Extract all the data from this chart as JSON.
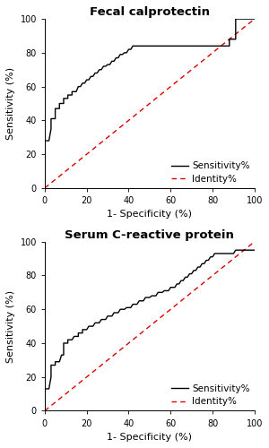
{
  "title1": "Fecal calprotectin",
  "title2": "Serum C-reactive protein",
  "xlabel": "1- Specificity (%)",
  "ylabel": "Sensitivity (%)",
  "xlim": [
    0,
    100
  ],
  "ylim": [
    0,
    100
  ],
  "xticks": [
    0,
    20,
    40,
    60,
    80,
    100
  ],
  "yticks": [
    0,
    20,
    40,
    60,
    80,
    100
  ],
  "legend_labels": [
    "Sensitivity%",
    "Identity%"
  ],
  "roc1_x": [
    0,
    0,
    2,
    3,
    3,
    5,
    5,
    7,
    7,
    9,
    9,
    11,
    11,
    13,
    13,
    15,
    16,
    17,
    18,
    19,
    20,
    21,
    22,
    23,
    24,
    25,
    26,
    27,
    28,
    29,
    30,
    31,
    32,
    33,
    34,
    35,
    36,
    37,
    38,
    39,
    40,
    41,
    42,
    43,
    44,
    45,
    46,
    47,
    48,
    49,
    50,
    88,
    88,
    91,
    91,
    94,
    100
  ],
  "roc1_y": [
    0,
    28,
    28,
    35,
    41,
    41,
    47,
    47,
    50,
    50,
    53,
    53,
    55,
    55,
    57,
    57,
    60,
    60,
    62,
    62,
    64,
    64,
    66,
    66,
    68,
    68,
    70,
    70,
    72,
    72,
    73,
    73,
    75,
    75,
    77,
    77,
    79,
    79,
    80,
    80,
    82,
    82,
    84,
    84,
    84,
    84,
    84,
    84,
    84,
    84,
    84,
    84,
    88,
    88,
    100,
    100,
    100
  ],
  "roc2_x": [
    0,
    0,
    2,
    3,
    3,
    5,
    5,
    7,
    8,
    9,
    9,
    11,
    11,
    13,
    14,
    16,
    16,
    18,
    18,
    20,
    21,
    23,
    24,
    26,
    27,
    29,
    30,
    32,
    33,
    35,
    36,
    38,
    39,
    41,
    42,
    44,
    45,
    47,
    48,
    50,
    51,
    53,
    54,
    56,
    57,
    59,
    60,
    62,
    63,
    64,
    65,
    66,
    67,
    68,
    69,
    70,
    71,
    72,
    73,
    74,
    75,
    76,
    77,
    78,
    79,
    80,
    81,
    82,
    83,
    84,
    85,
    86,
    87,
    88,
    89,
    90,
    91,
    92,
    93,
    94,
    95,
    96,
    100
  ],
  "roc2_y": [
    0,
    13,
    13,
    20,
    27,
    27,
    29,
    29,
    33,
    33,
    40,
    40,
    42,
    42,
    44,
    44,
    46,
    46,
    48,
    48,
    50,
    50,
    52,
    52,
    54,
    54,
    56,
    56,
    58,
    58,
    60,
    60,
    61,
    61,
    63,
    63,
    65,
    65,
    67,
    67,
    68,
    68,
    70,
    70,
    71,
    71,
    73,
    73,
    75,
    75,
    77,
    77,
    79,
    79,
    81,
    81,
    83,
    83,
    85,
    85,
    87,
    87,
    89,
    89,
    91,
    91,
    93,
    93,
    93,
    93,
    93,
    93,
    93,
    93,
    93,
    93,
    95,
    95,
    95,
    95,
    95,
    95,
    95
  ],
  "line_color": "#000000",
  "identity_color": "#dd0000",
  "title_fontsize": 9.5,
  "axis_fontsize": 8,
  "tick_fontsize": 7,
  "legend_fontsize": 7.5
}
